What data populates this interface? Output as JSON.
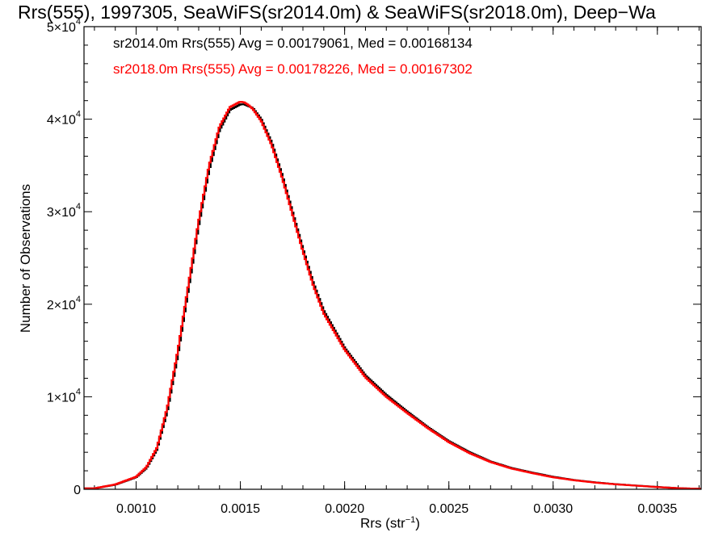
{
  "chart_data": {
    "type": "step",
    "title": "Rrs(555), 1997305, SeaWiFS(sr2014.0m) & SeaWiFS(sr2018.0m), Deep−Wa",
    "xlabel_main": "Rrs (str",
    "xlabel_sup": "−1",
    "xlabel_close": ")",
    "ylabel": "Number of Observations",
    "xlim": [
      0.00075,
      0.00371
    ],
    "ylim": [
      0,
      50000
    ],
    "x_ticks": [
      {
        "value": 0.001,
        "label": "0.0010"
      },
      {
        "value": 0.0015,
        "label": "0.0015"
      },
      {
        "value": 0.002,
        "label": "0.0020"
      },
      {
        "value": 0.0025,
        "label": "0.0025"
      },
      {
        "value": 0.003,
        "label": "0.0030"
      },
      {
        "value": 0.0035,
        "label": "0.0035"
      }
    ],
    "y_ticks": [
      {
        "value": 0,
        "mant": "0",
        "exp": ""
      },
      {
        "value": 10000,
        "mant": "1×10",
        "exp": "4"
      },
      {
        "value": 20000,
        "mant": "2×10",
        "exp": "4"
      },
      {
        "value": 30000,
        "mant": "3×10",
        "exp": "4"
      },
      {
        "value": 40000,
        "mant": "4×10",
        "exp": "4"
      },
      {
        "value": 50000,
        "mant": "5×10",
        "exp": "4"
      }
    ],
    "stats": [
      {
        "text": "sr2014.0m Rrs(555) Avg = 0.00179061, Med = 0.00168134",
        "color": "#000000"
      },
      {
        "text": "sr2018.0m Rrs(555) Avg = 0.00178226, Med = 0.00167302",
        "color": "#ff0000"
      }
    ],
    "series": [
      {
        "name": "sr2014.0m",
        "color": "#000000",
        "x": [
          0.0008,
          0.0009,
          0.001,
          0.00105,
          0.0011,
          0.00115,
          0.0012,
          0.00125,
          0.0013,
          0.00135,
          0.0014,
          0.00145,
          0.0015,
          0.00152,
          0.00154,
          0.00156,
          0.0016,
          0.00165,
          0.0017,
          0.00175,
          0.0018,
          0.00185,
          0.0019,
          0.002,
          0.0021,
          0.0022,
          0.0023,
          0.0024,
          0.0025,
          0.0026,
          0.0027,
          0.0028,
          0.0029,
          0.003,
          0.0031,
          0.0032,
          0.0033,
          0.0034,
          0.0035,
          0.0036,
          0.00371
        ],
        "y": [
          100,
          500,
          1300,
          2300,
          4300,
          8500,
          14500,
          21500,
          28500,
          34500,
          38800,
          41000,
          41600,
          41600,
          41400,
          41200,
          40000,
          37500,
          34000,
          30000,
          26000,
          22300,
          19300,
          15300,
          12300,
          10200,
          8400,
          6700,
          5200,
          4000,
          3000,
          2300,
          1800,
          1350,
          1000,
          750,
          550,
          400,
          250,
          120,
          50
        ]
      },
      {
        "name": "sr2018.0m",
        "color": "#ff0000",
        "x": [
          0.0008,
          0.0009,
          0.001,
          0.00105,
          0.0011,
          0.00115,
          0.0012,
          0.00125,
          0.0013,
          0.00135,
          0.0014,
          0.00145,
          0.0015,
          0.00152,
          0.00154,
          0.00156,
          0.0016,
          0.00165,
          0.0017,
          0.00175,
          0.0018,
          0.00185,
          0.0019,
          0.002,
          0.0021,
          0.0022,
          0.0023,
          0.0024,
          0.0025,
          0.0026,
          0.0027,
          0.0028,
          0.0029,
          0.003,
          0.0031,
          0.0032,
          0.0033,
          0.0034,
          0.0035,
          0.0036,
          0.00371
        ],
        "y": [
          100,
          520,
          1350,
          2400,
          4500,
          8900,
          15000,
          22000,
          29000,
          35000,
          39200,
          41300,
          41900,
          41800,
          41500,
          41100,
          39800,
          37200,
          33700,
          29700,
          25700,
          22000,
          19000,
          15100,
          12100,
          10000,
          8250,
          6600,
          5100,
          3900,
          2950,
          2250,
          1750,
          1300,
          980,
          730,
          540,
          390,
          240,
          115,
          50
        ]
      }
    ]
  }
}
